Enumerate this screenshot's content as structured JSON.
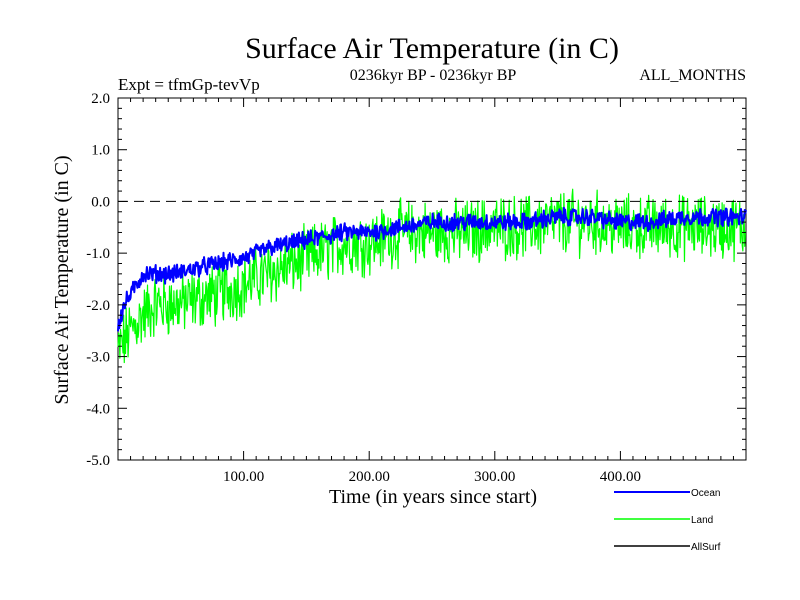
{
  "chart_data": {
    "type": "line",
    "title": "Surface Air Temperature (in C)",
    "subtitle_left": "Expt = tfmGp-tevVp",
    "subtitle_center": "0236kyr BP - 0236kyr BP",
    "subtitle_right": "ALL_MONTHS",
    "xlabel": "Time (in years since start)",
    "ylabel": "Surface Air Temperature (in C)",
    "xlim": [
      0,
      500
    ],
    "ylim": [
      -5.0,
      2.0
    ],
    "x_ticks": [
      100,
      200,
      300,
      400
    ],
    "x_tick_labels": [
      "100.00",
      "200.00",
      "300.00",
      "400.00"
    ],
    "y_ticks": [
      -5,
      -4,
      -3,
      -2,
      -1,
      0,
      1,
      2
    ],
    "y_tick_labels": [
      "-5.0",
      "-4.0",
      "-3.0",
      "-2.0",
      "-1.0",
      "0.0",
      "1.0",
      "2.0"
    ],
    "reference_line": {
      "y": 0.0,
      "style": "dashed"
    },
    "series": [
      {
        "name": "Land",
        "color": "#00ff00",
        "x": [
          0,
          5,
          10,
          20,
          30,
          45,
          60,
          80,
          100,
          120,
          140,
          160,
          180,
          200,
          225,
          250,
          275,
          300,
          325,
          350,
          375,
          400,
          425,
          450,
          475,
          500
        ],
        "y": [
          -2.9,
          -2.7,
          -2.5,
          -2.2,
          -2.0,
          -2.0,
          -1.9,
          -1.8,
          -1.6,
          -1.4,
          -1.2,
          -1.0,
          -0.8,
          -0.8,
          -0.6,
          -0.6,
          -0.6,
          -0.5,
          -0.5,
          -0.4,
          -0.4,
          -0.5,
          -0.5,
          -0.5,
          -0.5,
          -0.5
        ],
        "noise_amplitude": 0.65
      },
      {
        "name": "Ocean",
        "color": "#0000ff",
        "x": [
          0,
          5,
          10,
          20,
          30,
          45,
          60,
          80,
          100,
          120,
          140,
          160,
          180,
          200,
          225,
          250,
          275,
          300,
          325,
          350,
          375,
          400,
          425,
          450,
          475,
          500
        ],
        "y": [
          -2.4,
          -2.0,
          -1.8,
          -1.4,
          -1.4,
          -1.4,
          -1.3,
          -1.2,
          -1.1,
          -0.9,
          -0.8,
          -0.7,
          -0.6,
          -0.6,
          -0.5,
          -0.4,
          -0.4,
          -0.4,
          -0.4,
          -0.3,
          -0.3,
          -0.4,
          -0.4,
          -0.3,
          -0.3,
          -0.3
        ],
        "noise_amplitude": 0.18
      },
      {
        "name": "AllSurf",
        "color": "#000000",
        "x": [],
        "y": []
      }
    ],
    "legend": {
      "placement": "bottom-right",
      "entries": [
        "Ocean",
        "Land",
        "AllSurf"
      ]
    },
    "grid": false
  }
}
